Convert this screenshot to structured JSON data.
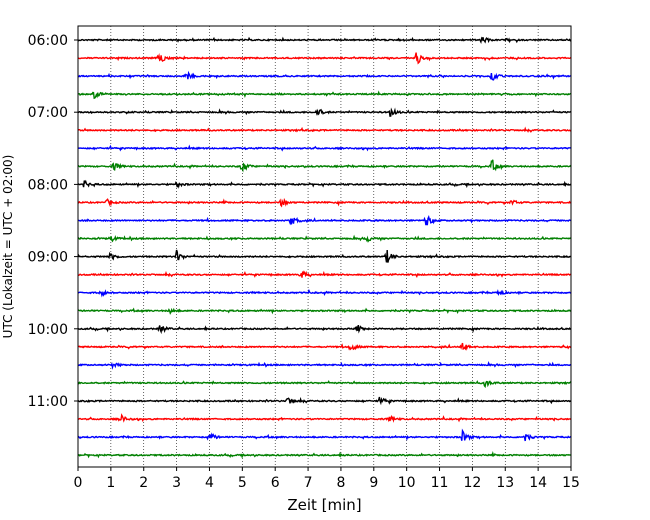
{
  "chart_data": {
    "type": "line",
    "title": "",
    "xlabel": "Zeit  [min]",
    "ylabel": "UTC (Lokalzeit = UTC + 02:00)",
    "xlim": [
      0,
      15
    ],
    "x_ticks": [
      0,
      1,
      2,
      3,
      4,
      5,
      6,
      7,
      8,
      9,
      10,
      11,
      12,
      13,
      14,
      15
    ],
    "y_ticks": [
      "06:00",
      "07:00",
      "08:00",
      "09:00",
      "10:00",
      "11:00"
    ],
    "grid": "vertical dotted",
    "trace_interval_min": 15,
    "trace_colors": [
      "#000000",
      "#ff0000",
      "#0000ff",
      "#008000"
    ],
    "traces": [
      {
        "start": "06:00",
        "events": [
          [
            12.3,
            0.5
          ]
        ]
      },
      {
        "start": "06:15",
        "events": [
          [
            2.5,
            0.7
          ],
          [
            10.3,
            1.0
          ]
        ]
      },
      {
        "start": "06:30",
        "events": [
          [
            3.3,
            0.6
          ],
          [
            12.6,
            0.6
          ]
        ]
      },
      {
        "start": "06:45",
        "events": [
          [
            0.5,
            0.6
          ]
        ]
      },
      {
        "start": "07:00",
        "events": [
          [
            7.3,
            0.6
          ],
          [
            9.5,
            0.7
          ]
        ]
      },
      {
        "start": "07:15",
        "events": []
      },
      {
        "start": "07:30",
        "events": []
      },
      {
        "start": "07:45",
        "events": [
          [
            1.1,
            0.5
          ],
          [
            5.0,
            0.8
          ],
          [
            12.6,
            0.9
          ]
        ]
      },
      {
        "start": "08:00",
        "events": [
          [
            0.2,
            0.5
          ],
          [
            3.0,
            0.4
          ]
        ]
      },
      {
        "start": "08:15",
        "events": [
          [
            0.9,
            0.4
          ],
          [
            6.2,
            0.5
          ],
          [
            13.2,
            0.4
          ]
        ]
      },
      {
        "start": "08:30",
        "events": [
          [
            6.5,
            0.8
          ],
          [
            10.6,
            0.8
          ]
        ]
      },
      {
        "start": "08:45",
        "events": [
          [
            1.0,
            0.4
          ],
          [
            8.8,
            0.4
          ]
        ]
      },
      {
        "start": "09:00",
        "events": [
          [
            1.0,
            0.6
          ],
          [
            3.0,
            0.9
          ],
          [
            9.4,
            1.0
          ]
        ]
      },
      {
        "start": "09:15",
        "events": [
          [
            6.8,
            0.6
          ]
        ]
      },
      {
        "start": "09:30",
        "events": [
          [
            0.7,
            0.4
          ],
          [
            12.8,
            0.4
          ]
        ]
      },
      {
        "start": "09:45",
        "events": [
          [
            2.8,
            0.4
          ]
        ]
      },
      {
        "start": "10:00",
        "events": [
          [
            2.5,
            0.6
          ],
          [
            8.5,
            0.4
          ]
        ]
      },
      {
        "start": "10:15",
        "events": [
          [
            8.3,
            0.6
          ],
          [
            11.7,
            0.5
          ]
        ]
      },
      {
        "start": "10:30",
        "events": [
          [
            1.1,
            0.4
          ]
        ]
      },
      {
        "start": "10:45",
        "events": [
          [
            12.4,
            0.6
          ]
        ]
      },
      {
        "start": "11:00",
        "events": [
          [
            6.4,
            0.5
          ],
          [
            9.2,
            0.5
          ]
        ]
      },
      {
        "start": "11:15",
        "events": [
          [
            1.3,
            0.6
          ],
          [
            9.5,
            0.4
          ]
        ]
      },
      {
        "start": "11:30",
        "events": [
          [
            4.0,
            0.7
          ],
          [
            11.7,
            0.9
          ],
          [
            13.6,
            0.6
          ]
        ]
      },
      {
        "start": "11:45",
        "events": []
      }
    ]
  }
}
